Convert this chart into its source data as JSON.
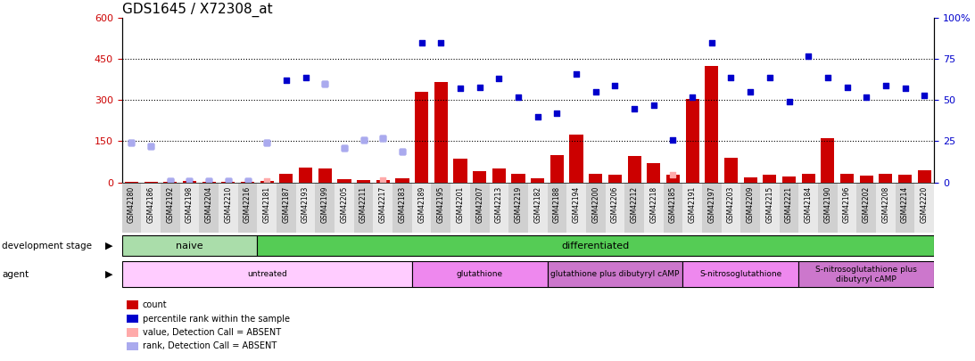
{
  "title": "GDS1645 / X72308_at",
  "samples": [
    "GSM42180",
    "GSM42186",
    "GSM42192",
    "GSM42198",
    "GSM42204",
    "GSM42210",
    "GSM42216",
    "GSM42181",
    "GSM42187",
    "GSM42193",
    "GSM42199",
    "GSM42205",
    "GSM42211",
    "GSM42217",
    "GSM42183",
    "GSM42189",
    "GSM42195",
    "GSM42201",
    "GSM42207",
    "GSM42213",
    "GSM42219",
    "GSM42182",
    "GSM42188",
    "GSM42194",
    "GSM42200",
    "GSM42206",
    "GSM42212",
    "GSM42218",
    "GSM42185",
    "GSM42191",
    "GSM42197",
    "GSM42203",
    "GSM42209",
    "GSM42215",
    "GSM42221",
    "GSM42184",
    "GSM42190",
    "GSM42196",
    "GSM42202",
    "GSM42208",
    "GSM42214",
    "GSM42220"
  ],
  "count_values": [
    2,
    2,
    3,
    5,
    2,
    2,
    2,
    5,
    30,
    55,
    50,
    10,
    8,
    8,
    15,
    330,
    365,
    85,
    40,
    50,
    30,
    15,
    100,
    175,
    30,
    28,
    95,
    70,
    28,
    305,
    425,
    90,
    18,
    28,
    22,
    30,
    160,
    30,
    25,
    30,
    28,
    45
  ],
  "rank_pct": [
    24,
    22,
    1,
    1,
    1,
    1,
    1,
    24,
    62,
    64,
    60,
    21,
    26,
    27,
    19,
    85,
    85,
    57,
    58,
    63,
    52,
    40,
    42,
    66,
    55,
    59,
    45,
    47,
    26,
    52,
    85,
    64,
    55,
    64,
    49,
    77,
    64,
    58,
    52,
    59,
    57,
    53
  ],
  "absent_count_indices": [
    2,
    7,
    13,
    28
  ],
  "absent_count_vals": [
    3,
    5,
    8,
    28
  ],
  "absent_rank_indices": [
    0,
    1,
    2,
    3,
    4,
    5,
    6,
    7,
    10,
    11,
    12,
    13,
    14
  ],
  "absent_rank_pct": [
    24,
    22,
    1,
    1,
    1,
    1,
    1,
    24,
    60,
    21,
    26,
    27,
    19
  ],
  "dev_stage_groups": [
    {
      "label": "naive",
      "start": 0,
      "end": 7,
      "color": "#aaddaa"
    },
    {
      "label": "differentiated",
      "start": 7,
      "end": 42,
      "color": "#55cc55"
    }
  ],
  "agent_groups": [
    {
      "label": "untreated",
      "start": 0,
      "end": 15,
      "color": "#ffccff"
    },
    {
      "label": "glutathione",
      "start": 15,
      "end": 22,
      "color": "#ee88ee"
    },
    {
      "label": "glutathione plus dibutyryl cAMP",
      "start": 22,
      "end": 29,
      "color": "#cc77cc"
    },
    {
      "label": "S-nitrosoglutathione",
      "start": 29,
      "end": 35,
      "color": "#ee88ee"
    },
    {
      "label": "S-nitrosoglutathione plus\ndibutyryl cAMP",
      "start": 35,
      "end": 42,
      "color": "#cc77cc"
    }
  ],
  "ylim_left": [
    0,
    600
  ],
  "ylim_right": [
    0,
    100
  ],
  "yticks_left": [
    0,
    150,
    300,
    450,
    600
  ],
  "yticks_right": [
    0,
    25,
    50,
    75,
    100
  ],
  "count_color": "#cc0000",
  "rank_color": "#0000cc",
  "absent_val_color": "#ffaaaa",
  "absent_rank_color": "#aaaaee",
  "title_color": "#000000",
  "title_fontsize": 11
}
